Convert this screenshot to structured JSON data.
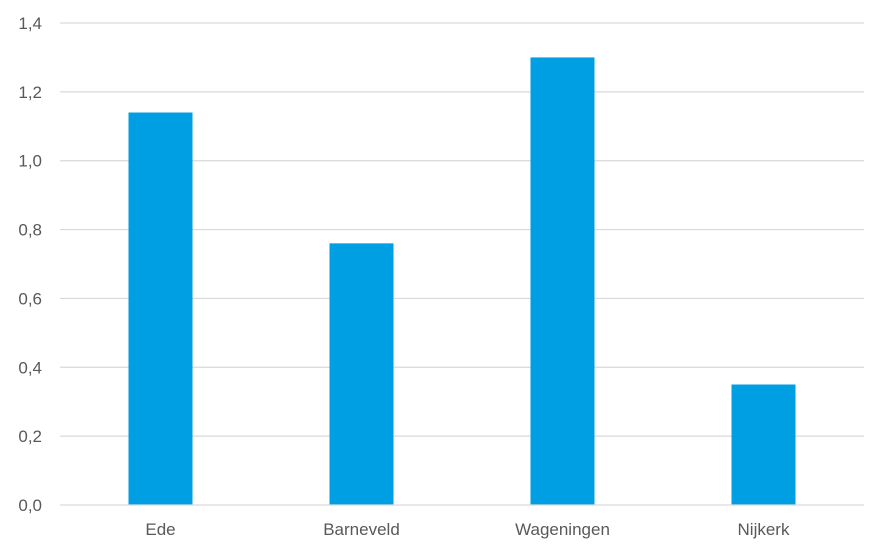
{
  "chart_data": {
    "type": "bar",
    "categories": [
      "Ede",
      "Barneveld",
      "Wageningen",
      "Nijkerk"
    ],
    "values": [
      1.14,
      0.76,
      1.3,
      0.35
    ],
    "title": "",
    "xlabel": "",
    "ylabel": "",
    "ylim": [
      0,
      1.4
    ],
    "yticks": [
      0.0,
      0.2,
      0.4,
      0.6,
      0.8,
      1.0,
      1.2,
      1.4
    ],
    "ytick_labels": [
      "0,0",
      "0,2",
      "0,4",
      "0,6",
      "0,8",
      "1,0",
      "1,2",
      "1,4"
    ],
    "grid": true,
    "legend": "none",
    "bar_color": "#009fe3",
    "grid_color": "#d9d9d9",
    "label_color": "#595959"
  }
}
